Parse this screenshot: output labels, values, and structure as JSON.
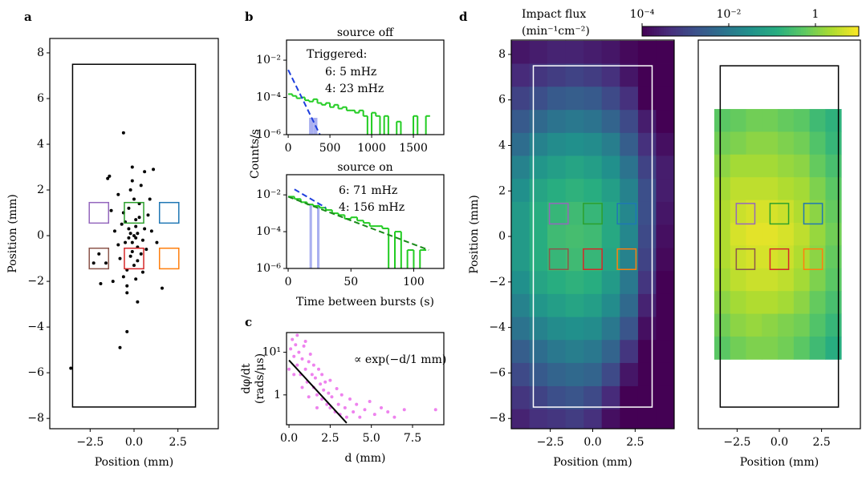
{
  "colorbar": {
    "label": [
      "Impact flux",
      "(min⁻¹cm⁻²)"
    ],
    "lim": [
      0.0001,
      10
    ],
    "log": true,
    "colormap": "viridis",
    "ticks": [
      {
        "value": 0.0001,
        "label": "10⁻⁴"
      },
      {
        "value": 0.01,
        "label": "10⁻²"
      },
      1
    ]
  },
  "region_size": [
    1.1,
    0.9
  ],
  "regions": [
    {
      "x": -2.0,
      "y": 1.0,
      "color": "#9467bd"
    },
    {
      "x": 0.0,
      "y": 1.0,
      "color": "#2ca02c"
    },
    {
      "x": 2.0,
      "y": 1.0,
      "color": "#1f77b4"
    },
    {
      "x": -2.0,
      "y": -1.0,
      "color": "#8c564b"
    },
    {
      "x": 0.0,
      "y": -1.0,
      "color": "#d62728"
    },
    {
      "x": 2.0,
      "y": -1.0,
      "color": "#ff7f0e"
    }
  ],
  "chart_data": [
    {
      "type": "scatter",
      "panel": "a",
      "xlabel": "Position (mm)",
      "ylabel": "Position (mm)",
      "color": "#000000",
      "xlim": [
        -4.8,
        4.8
      ],
      "ylim": [
        -8.45,
        8.63
      ],
      "xticks": [
        {
          "value": -2.5,
          "label": "−2.5"
        },
        {
          "value": 0,
          "label": "0.0"
        },
        2.5
      ],
      "yticks": [
        {
          "value": -8,
          "label": "−8"
        },
        {
          "value": -6,
          "label": "−6"
        },
        {
          "value": -4,
          "label": "−4"
        },
        {
          "value": -2,
          "label": "−2"
        },
        0,
        2,
        4,
        6,
        8
      ],
      "show_regions": true,
      "outline": {
        "x": [
          -3.5,
          3.5
        ],
        "y": [
          -7.5,
          7.5
        ],
        "color": "#000000"
      },
      "x": [
        -0.2,
        0.1,
        -0.5,
        0.3,
        -0.1,
        -0.7,
        0.5,
        -0.3,
        0.2,
        -0.9,
        0.0,
        -0.4,
        0.6,
        -0.6,
        0.4,
        -0.2,
        0.1,
        -1.1,
        0.8,
        -0.3,
        0.2,
        -0.5,
        0.0,
        -0.8,
        0.3,
        -0.1,
        0.5,
        -0.4,
        0.7,
        -1.3,
        1.0,
        -0.2,
        0.1,
        -0.6,
        0.4,
        -1.6,
        1.3,
        -2.3,
        -1.5,
        -0.9,
        0.9,
        1.6,
        -0.4,
        -2.0,
        -1.2,
        0.6,
        -3.6,
        -0.6,
        -0.8,
        -0.4,
        -1.4,
        0.2,
        -1.9,
        1.1,
        -0.1,
        0.0,
        -0.3,
        0.2,
        -0.1,
        0.1
      ],
      "y": [
        0.1,
        0.4,
        -0.3,
        0.8,
        -0.7,
        0.5,
        -0.2,
        1.2,
        -1.1,
        -0.4,
        1.6,
        -1.5,
        0.3,
        1.0,
        -0.8,
        2.0,
        -1.9,
        0.2,
        0.9,
        -0.1,
        -0.5,
        0.6,
        -1.3,
        -1.0,
        1.4,
        2.4,
        -1.6,
        -2.2,
        -0.6,
        1.1,
        0.2,
        -0.9,
        0.7,
        -1.8,
        2.2,
        -1.2,
        -0.3,
        -1.2,
        2.5,
        1.8,
        1.6,
        -2.3,
        -2.5,
        -0.8,
        -2.0,
        2.8,
        -5.8,
        4.5,
        -4.9,
        -4.2,
        2.6,
        -2.9,
        -2.1,
        2.9,
        3.0,
        0.0,
        0.3,
        0.1,
        -0.3,
        -0.1
      ]
    },
    {
      "type": "histogram",
      "panel": "b",
      "title": "source off",
      "ylabel": "Counts/s",
      "ylog": true,
      "xlim": [
        -20,
        1865
      ],
      "ylim": [
        1e-06,
        0.12
      ],
      "xticks": [
        0,
        500,
        1000,
        1500
      ],
      "yticks": [
        {
          "value": 1e-06,
          "label": "10⁻⁶"
        },
        {
          "value": 0.0001,
          "label": "10⁻⁴"
        },
        {
          "value": 0.01,
          "label": "10⁻²"
        }
      ],
      "annotations": [
        "Triggered:",
        "6: 5 mHz",
        "4: 23 mHz"
      ],
      "series": [
        {
          "style": "bar",
          "color": "#aab0f0",
          "bins": [
            250,
            300,
            350
          ],
          "values": [
            8e-06,
            8e-06
          ]
        },
        {
          "style": "step",
          "color": "#22cc22",
          "bins": [
            0,
            50,
            100,
            150,
            200,
            250,
            300,
            350,
            400,
            450,
            500,
            550,
            600,
            650,
            700,
            750,
            800,
            850,
            900,
            950,
            1000,
            1050,
            1100,
            1150,
            1200,
            1250,
            1300,
            1350,
            1400,
            1450,
            1500,
            1550,
            1600,
            1650,
            1700
          ],
          "values": [
            0.00015,
            0.00012,
            9e-05,
            0.0001,
            7e-05,
            6e-05,
            8e-05,
            5e-05,
            4e-05,
            5e-05,
            3e-05,
            4e-05,
            2.5e-05,
            3e-05,
            2e-05,
            2e-05,
            1.5e-05,
            2e-05,
            1e-05,
            0,
            1.5e-05,
            1e-05,
            0,
            1e-05,
            0,
            0,
            5e-06,
            0,
            0,
            0,
            1e-05,
            0,
            0,
            1e-05
          ]
        }
      ],
      "fits": [
        {
          "x": [
            0,
            380
          ],
          "y": [
            0.003,
            1e-06
          ],
          "color": "#1f3fdd"
        }
      ]
    },
    {
      "type": "histogram",
      "title": "source on",
      "xlabel": "Time between bursts (s)",
      "ylog": true,
      "xlim": [
        -1.3,
        124
      ],
      "ylim": [
        1e-06,
        0.125
      ],
      "xticks": [
        0,
        50,
        100
      ],
      "yticks": [
        {
          "value": 1e-06,
          "label": "10⁻⁶"
        },
        {
          "value": 0.0001,
          "label": "10⁻⁴"
        },
        {
          "value": 0.01,
          "label": "10⁻²"
        }
      ],
      "annotations": [
        "6: 71 mHz",
        "4: 156 mHz"
      ],
      "series": [
        {
          "style": "bar",
          "color": "#aab0f0",
          "bins": [
            17,
            19,
            23,
            25
          ],
          "values": [
            0.003,
            0,
            0.003
          ]
        },
        {
          "style": "step",
          "color": "#22cc22",
          "bins": [
            0,
            5,
            10,
            15,
            20,
            25,
            30,
            35,
            40,
            45,
            50,
            55,
            60,
            65,
            70,
            75,
            80,
            85,
            90,
            95,
            100,
            105,
            110
          ],
          "values": [
            0.008,
            0.006,
            0.004,
            0.003,
            0.0025,
            0.002,
            0.0015,
            0.001,
            0.0008,
            0.0005,
            0.0006,
            0.0004,
            0.0003,
            0.0002,
            0.0002,
            0.00015,
            0,
            0.0001,
            0,
            1e-05,
            0,
            1e-05
          ]
        }
      ],
      "fits": [
        {
          "x": [
            5,
            30
          ],
          "y": [
            0.02,
            0.002
          ],
          "color": "#1f3fdd"
        },
        {
          "x": [
            0,
            112
          ],
          "y": [
            0.008,
            1e-05
          ],
          "color": "#1a8a1a"
        }
      ]
    },
    {
      "type": "scatter",
      "panel": "c",
      "xlabel": "d (mm)",
      "ylabel": [
        "dφ/dt",
        "(rads/μs)"
      ],
      "ylog": true,
      "color": "#ee82ee",
      "xlim": [
        -0.15,
        9.4
      ],
      "ylim": [
        0.2,
        29
      ],
      "xticks": [
        {
          "value": 0,
          "label": "0.0"
        },
        2.5,
        {
          "value": 5,
          "label": "5.0"
        },
        7.5
      ],
      "yticks": [
        1,
        {
          "value": 10,
          "label": "10¹"
        }
      ],
      "annotations": [
        "∝ exp(−d/1 mm)"
      ],
      "fits": [
        {
          "x": [
            0,
            3.5
          ],
          "y": [
            6.5,
            0.22
          ],
          "color": "#000000",
          "solid": true
        }
      ],
      "x": [
        0.1,
        0.2,
        0.3,
        0.4,
        0.5,
        0.5,
        0.6,
        0.7,
        0.8,
        0.9,
        1.0,
        1.0,
        1.1,
        1.2,
        1.3,
        1.4,
        1.5,
        1.5,
        1.6,
        1.7,
        1.8,
        1.9,
        2.0,
        2.0,
        2.1,
        2.2,
        2.3,
        2.4,
        2.5,
        2.5,
        2.6,
        2.8,
        2.9,
        3.0,
        3.1,
        3.2,
        3.4,
        3.5,
        3.7,
        3.9,
        4.1,
        4.3,
        4.6,
        4.9,
        5.2,
        5.6,
        6.0,
        6.4,
        7.0,
        8.9,
        0.3,
        0.8,
        1.2,
        1.7,
        0.0
      ],
      "y": [
        12,
        20,
        8,
        15,
        5,
        25,
        10,
        3,
        7,
        14,
        4,
        18,
        2,
        6,
        9,
        3,
        1.5,
        5,
        2.5,
        1,
        4,
        1.8,
        0.8,
        3,
        1.3,
        2,
        0.6,
        1.1,
        0.5,
        2.2,
        0.9,
        0.4,
        1.4,
        0.6,
        0.35,
        1,
        0.5,
        0.3,
        0.8,
        0.4,
        0.6,
        0.3,
        0.45,
        0.7,
        0.35,
        0.5,
        0.4,
        0.3,
        0.45,
        0.45,
        3,
        1.5,
        0.9,
        0.5,
        4
      ]
    },
    {
      "type": "heatmap",
      "panel": "d",
      "xlabel": "Position (mm)",
      "ylabel": "Position (mm)",
      "xlim": [
        -4.8,
        4.8
      ],
      "ylim": [
        -8.45,
        8.63
      ],
      "xticks": [
        {
          "value": -2.5,
          "label": "−2.5"
        },
        {
          "value": 0,
          "label": "0.0"
        },
        2.5
      ],
      "yticks": [
        {
          "value": -8,
          "label": "−8"
        },
        {
          "value": -6,
          "label": "−6"
        },
        {
          "value": -4,
          "label": "−4"
        },
        {
          "value": -2,
          "label": "−2"
        },
        0,
        2,
        4,
        6,
        8
      ],
      "show_regions": true,
      "outline": {
        "x": [
          -3.5,
          3.5
        ],
        "y": [
          -7.5,
          7.5
        ],
        "color": "#ffffff"
      },
      "x_edges": [
        -4.8,
        -3.73,
        -2.67,
        -1.6,
        -0.53,
        0.53,
        1.6,
        2.67,
        3.73,
        4.8
      ],
      "y_edges": [
        8.6,
        7.59,
        6.58,
        5.56,
        4.55,
        3.54,
        2.53,
        1.52,
        0.51,
        -0.51,
        -1.52,
        -2.53,
        -3.54,
        -4.55,
        -5.56,
        -6.58,
        -7.59,
        -8.6
      ],
      "values": [
        [
          0.0002,
          0.00025,
          0.0003,
          0.0003,
          0.00025,
          0.0002,
          0.00013,
          0.0001,
          0.0001
        ],
        [
          0.0004,
          0.0006,
          0.0008,
          0.001,
          0.0008,
          0.0005,
          0.0002,
          0.0001,
          0.0001
        ],
        [
          0.001,
          0.0016,
          0.0025,
          0.003,
          0.0025,
          0.0013,
          0.0005,
          0.0001,
          0.0001
        ],
        [
          0.0025,
          0.005,
          0.008,
          0.01,
          0.008,
          0.004,
          0.0013,
          0.00025,
          0.0001
        ],
        [
          0.006,
          0.016,
          0.025,
          0.03,
          0.025,
          0.013,
          0.003,
          0.0005,
          0.00016
        ],
        [
          0.016,
          0.04,
          0.06,
          0.08,
          0.06,
          0.03,
          0.008,
          0.001,
          0.00025
        ],
        [
          0.03,
          0.08,
          0.13,
          0.16,
          0.13,
          0.06,
          0.016,
          0.0016,
          0.00025
        ],
        [
          0.05,
          0.13,
          0.2,
          0.25,
          0.2,
          0.1,
          0.02,
          0.0016,
          0.0002
        ],
        [
          0.05,
          0.13,
          0.25,
          0.3,
          0.25,
          0.1,
          0.02,
          0.0013,
          0.00016
        ],
        [
          0.05,
          0.13,
          0.2,
          0.25,
          0.2,
          0.08,
          0.016,
          0.001,
          0.00013
        ],
        [
          0.03,
          0.08,
          0.13,
          0.16,
          0.13,
          0.05,
          0.01,
          0.0006,
          0.0001
        ],
        [
          0.016,
          0.04,
          0.06,
          0.08,
          0.06,
          0.025,
          0.005,
          0.0003,
          0.0001
        ],
        [
          0.008,
          0.016,
          0.025,
          0.03,
          0.025,
          0.01,
          0.002,
          0.00016,
          0.0001
        ],
        [
          0.003,
          0.006,
          0.01,
          0.013,
          0.01,
          0.004,
          0.0006,
          0.0001,
          0.0001
        ],
        [
          0.0013,
          0.0025,
          0.004,
          0.005,
          0.004,
          0.0013,
          0.0002,
          0.0001,
          0.0001
        ],
        [
          0.0006,
          0.001,
          0.0016,
          0.002,
          0.0013,
          0.0004,
          0.0001,
          0.0001,
          0.0001
        ],
        [
          0.0003,
          0.0005,
          0.0006,
          0.0008,
          0.0005,
          0.00016,
          0.0001,
          0.0001,
          0.0001
        ]
      ]
    },
    {
      "type": "heatmap",
      "xlabel": "Position (mm)",
      "xlim": [
        -4.8,
        4.8
      ],
      "ylim": [
        -8.45,
        8.63
      ],
      "xticks": [
        {
          "value": -2.5,
          "label": "−2.5"
        },
        {
          "value": 0,
          "label": "0.0"
        },
        2.5
      ],
      "show_regions": true,
      "outline": {
        "x": [
          -3.5,
          3.5
        ],
        "y": [
          -7.5,
          7.5
        ],
        "color": "#000000"
      },
      "x_edges": [
        -3.85,
        -2.91,
        -1.97,
        -1.03,
        -0.09,
        0.85,
        1.79,
        2.73,
        3.67
      ],
      "y_edges": [
        5.6,
        4.6,
        3.6,
        2.6,
        1.6,
        0.6,
        -0.4,
        -1.4,
        -2.4,
        -3.4,
        -4.4,
        -5.4
      ],
      "values": [
        [
          0.5,
          0.63,
          0.8,
          0.8,
          0.63,
          0.5,
          0.25,
          0.16
        ],
        [
          0.8,
          1,
          1.3,
          1.3,
          1,
          0.8,
          0.4,
          0.2
        ],
        [
          1.3,
          2,
          2,
          2,
          1.6,
          1.3,
          0.63,
          0.32
        ],
        [
          2,
          3.2,
          3.2,
          3.2,
          2.5,
          2,
          1,
          0.5
        ],
        [
          2.5,
          4,
          5,
          5,
          4,
          2.5,
          1.3,
          0.63
        ],
        [
          2.5,
          5,
          6.3,
          6.3,
          5,
          3.2,
          1.6,
          0.8
        ],
        [
          2.5,
          4,
          5,
          5,
          4,
          2.5,
          1.3,
          0.63
        ],
        [
          2,
          3.2,
          4,
          4,
          3.2,
          2,
          1,
          0.5
        ],
        [
          1.3,
          2,
          2.5,
          2.5,
          2,
          1.3,
          0.63,
          0.32
        ],
        [
          0.8,
          1.3,
          1.6,
          1.3,
          1,
          0.8,
          0.4,
          0.2
        ],
        [
          0.5,
          0.8,
          1,
          1,
          0.8,
          0.5,
          0.25,
          0.13
        ]
      ]
    }
  ]
}
